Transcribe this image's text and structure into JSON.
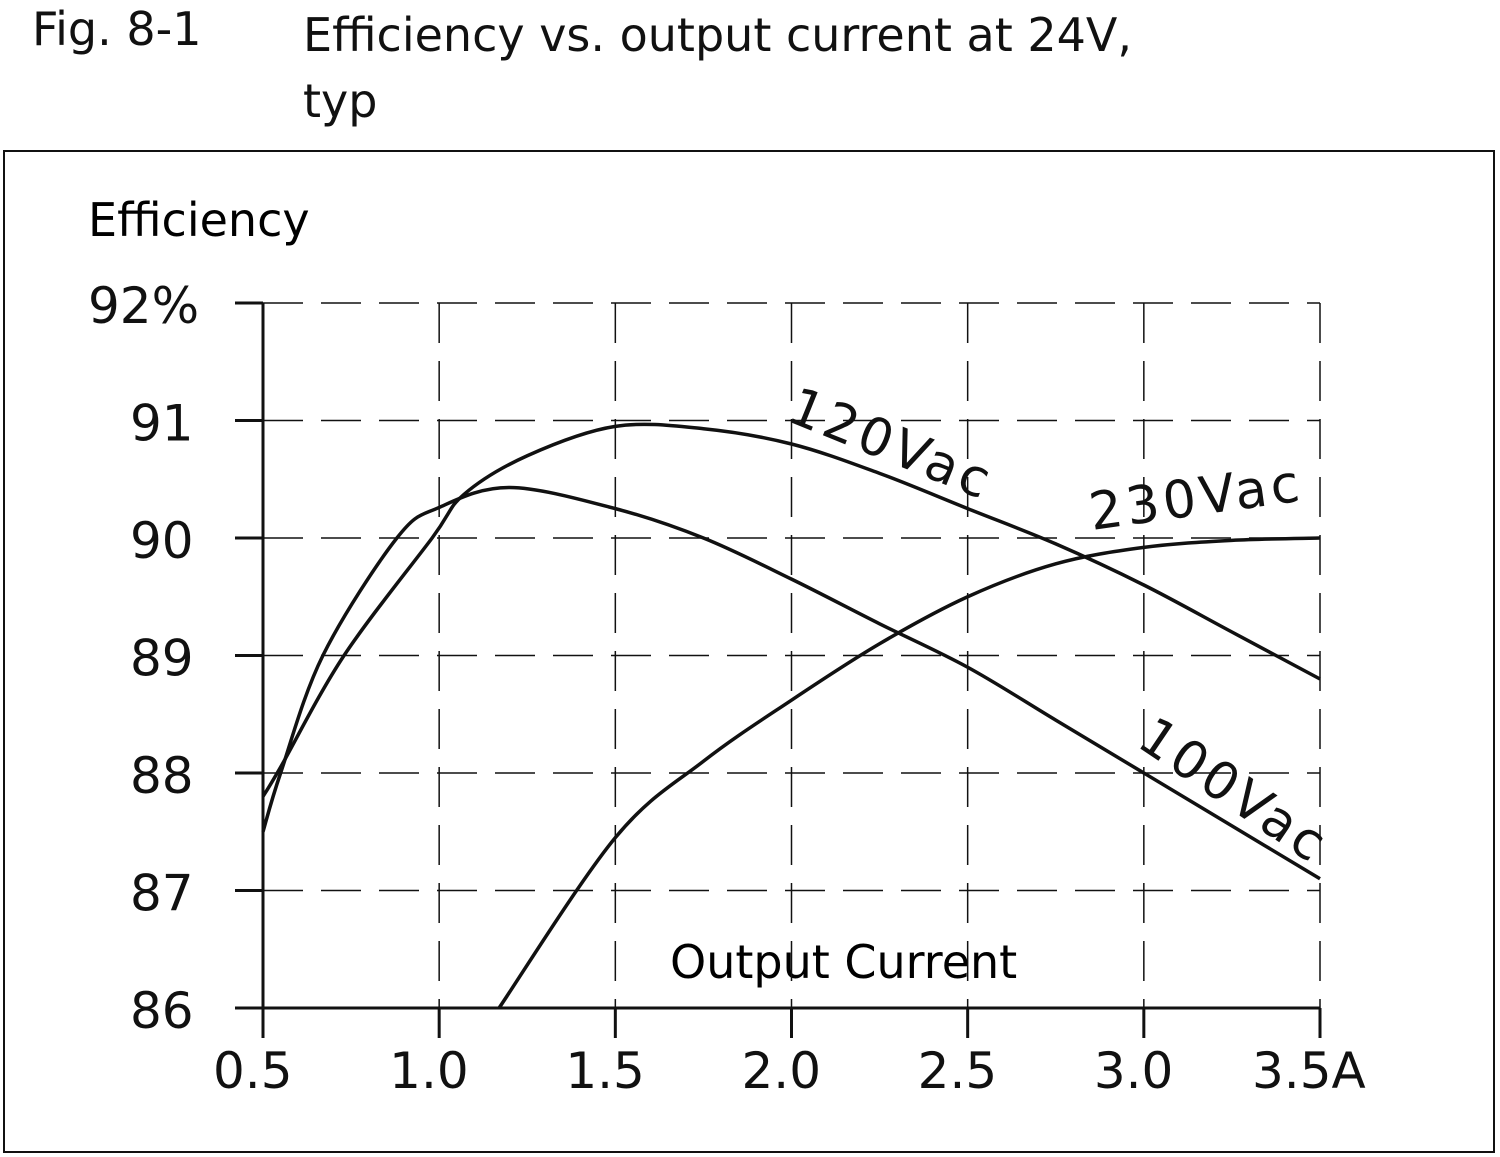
{
  "figure_label": "Fig. 8-1",
  "title_line1": "Efficiency vs. output current at 24V,",
  "title_line2": "typ",
  "chart_data": {
    "type": "line",
    "title": "Efficiency vs. output current at 24V, typ",
    "xlabel": "Output Current",
    "ylabel": "Efficiency",
    "xlim": [
      0.5,
      3.5
    ],
    "ylim": [
      86,
      92
    ],
    "x_ticks": [
      0.5,
      1.0,
      1.5,
      2.0,
      2.5,
      3.0,
      3.5
    ],
    "x_tick_labels": [
      "0.5",
      "1.0",
      "1.5",
      "2.0",
      "2.5",
      "3.0",
      "3.5A"
    ],
    "y_ticks": [
      86,
      87,
      88,
      89,
      90,
      91,
      92
    ],
    "y_tick_labels": [
      "86",
      "87",
      "88",
      "89",
      "90",
      "91",
      "92%"
    ],
    "grid": true,
    "grid_style": "dashed",
    "line_color": "#111111",
    "series": [
      {
        "name": "120Vac",
        "x": [
          0.5,
          0.55,
          0.73,
          0.98,
          1.07,
          1.25,
          1.5,
          1.75,
          2.0,
          2.25,
          2.5,
          2.75,
          3.0,
          3.25,
          3.5
        ],
        "y": [
          87.8,
          88.05,
          89.0,
          90.0,
          90.37,
          90.7,
          90.95,
          90.93,
          90.8,
          90.55,
          90.25,
          89.95,
          89.6,
          89.2,
          88.8
        ]
      },
      {
        "name": "100Vac",
        "x": [
          0.5,
          0.55,
          0.67,
          0.88,
          1.0,
          1.2,
          1.5,
          1.75,
          2.0,
          2.25,
          2.5,
          2.75,
          3.0,
          3.25,
          3.5
        ],
        "y": [
          87.5,
          88.0,
          89.0,
          90.0,
          90.26,
          90.43,
          90.25,
          90.0,
          89.65,
          89.27,
          88.9,
          88.45,
          88.0,
          87.55,
          87.1
        ]
      },
      {
        "name": "230Vac",
        "x": [
          1.17,
          1.5,
          1.75,
          2.0,
          2.25,
          2.5,
          2.75,
          3.0,
          3.25,
          3.5
        ],
        "y": [
          86.0,
          87.45,
          88.1,
          88.62,
          89.1,
          89.5,
          89.78,
          89.92,
          89.98,
          90.0
        ]
      }
    ]
  }
}
